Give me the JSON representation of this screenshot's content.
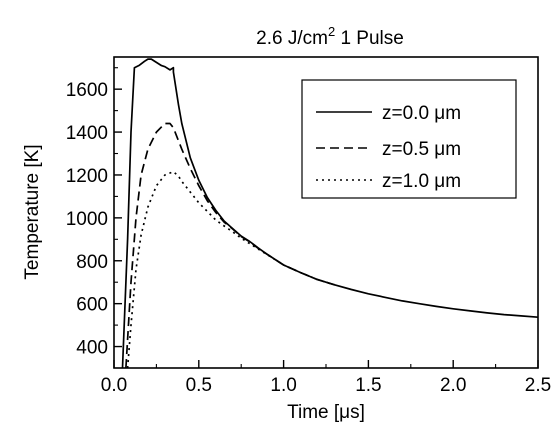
{
  "chart_data": {
    "type": "line",
    "title": "2.6 J/cm",
    "title_sup": "2",
    "title_suffix": " 1 Pulse",
    "xlabel": "Time [μs]",
    "ylabel": "Temperature [K]",
    "xlim": [
      0.0,
      2.5
    ],
    "ylim": [
      300,
      1750
    ],
    "xticks": [
      0.0,
      0.5,
      1.0,
      1.5,
      2.0,
      2.5
    ],
    "xtick_labels": [
      "0.0",
      "0.5",
      "1.0",
      "1.5",
      "2.0",
      "2.5"
    ],
    "yticks": [
      400,
      600,
      800,
      1000,
      1200,
      1400,
      1600
    ],
    "ytick_labels": [
      "400",
      "600",
      "800",
      "1000",
      "1200",
      "1400",
      "1600"
    ],
    "grid": false,
    "legend": "top-right",
    "series": [
      {
        "name": "z=0.0 μm",
        "style": "solid",
        "x": [
          0.05,
          0.08,
          0.1,
          0.12,
          0.15,
          0.18,
          0.2,
          0.22,
          0.25,
          0.28,
          0.3,
          0.33,
          0.35,
          0.35,
          0.38,
          0.4,
          0.45,
          0.5,
          0.55,
          0.6,
          0.65,
          0.7,
          0.75,
          0.8,
          0.85,
          0.9,
          1.0,
          1.1,
          1.2,
          1.3,
          1.4,
          1.5,
          1.6,
          1.7,
          1.8,
          1.9,
          2.0,
          2.1,
          2.2,
          2.3,
          2.4,
          2.5
        ],
        "y": [
          300,
          900,
          1400,
          1700,
          1712,
          1730,
          1740,
          1740,
          1725,
          1710,
          1705,
          1690,
          1700,
          1680,
          1530,
          1440,
          1280,
          1175,
          1095,
          1035,
          985,
          950,
          915,
          890,
          860,
          832,
          780,
          745,
          712,
          688,
          666,
          646,
          629,
          613,
          600,
          587,
          576,
          566,
          557,
          549,
          543,
          537
        ]
      },
      {
        "name": "z=0.5 μm",
        "style": "dashed",
        "x": [
          0.07,
          0.1,
          0.13,
          0.16,
          0.2,
          0.25,
          0.3,
          0.33,
          0.35,
          0.38,
          0.4,
          0.45,
          0.5,
          0.55,
          0.6,
          0.65,
          0.7,
          0.75,
          0.8,
          0.85,
          0.9,
          1.0,
          1.1,
          1.2,
          1.3
        ],
        "y": [
          300,
          700,
          1000,
          1200,
          1320,
          1400,
          1440,
          1440,
          1420,
          1360,
          1320,
          1230,
          1150,
          1080,
          1025,
          980,
          948,
          913,
          888,
          858,
          832,
          780,
          745,
          712,
          688
        ]
      },
      {
        "name": "z=1.0 μm",
        "style": "dotted",
        "x": [
          0.08,
          0.1,
          0.13,
          0.16,
          0.2,
          0.25,
          0.3,
          0.35,
          0.38,
          0.4,
          0.45,
          0.5,
          0.55,
          0.6,
          0.65,
          0.7,
          0.75,
          0.8,
          0.85,
          0.9,
          1.0,
          1.1,
          1.2,
          1.3
        ],
        "y": [
          300,
          500,
          760,
          920,
          1050,
          1150,
          1200,
          1215,
          1195,
          1170,
          1120,
          1070,
          1030,
          990,
          962,
          935,
          905,
          880,
          855,
          830,
          780,
          745,
          712,
          688
        ]
      }
    ]
  }
}
